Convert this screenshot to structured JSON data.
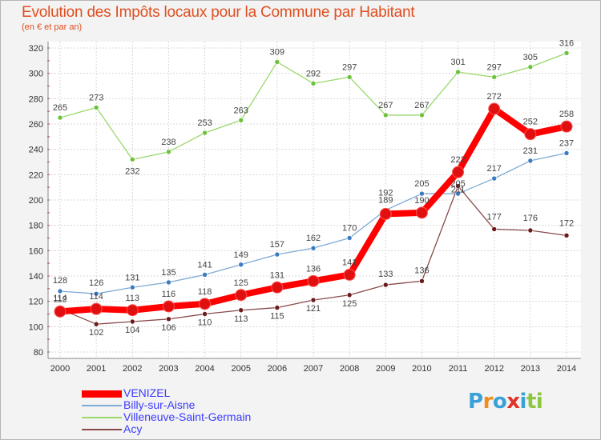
{
  "header": {
    "title": "Evolution des Impôts locaux pour la Commune par Habitant",
    "subtitle": "(en € et par an)"
  },
  "brand": {
    "logo_text": "Proxiti",
    "letter_colors": [
      "#3aa0d8",
      "#f28c1c",
      "#3aa0d8",
      "#e0332a",
      "#3aa0d8",
      "#8dc63f",
      "#8dc63f"
    ]
  },
  "chart_data": {
    "type": "line",
    "x": [
      2000,
      2001,
      2002,
      2003,
      2004,
      2005,
      2006,
      2007,
      2008,
      2009,
      2010,
      2011,
      2012,
      2013,
      2014
    ],
    "ylim": [
      80,
      320
    ],
    "yticks": [
      80,
      100,
      120,
      140,
      160,
      180,
      200,
      220,
      240,
      260,
      280,
      300,
      320
    ],
    "grid": true,
    "legend_position": "bottom-left",
    "series": [
      {
        "name": "VENIZEL",
        "color": "#ff0000",
        "marker": "#e02020",
        "values": [
          112,
          114,
          113,
          116,
          118,
          125,
          131,
          136,
          141,
          189,
          190,
          222,
          272,
          252,
          258
        ]
      },
      {
        "name": "Billy-sur-Aisne",
        "color": "#7eaad6",
        "marker": "#3a7cc0",
        "values": [
          128,
          126,
          131,
          135,
          141,
          149,
          157,
          162,
          170,
          192,
          205,
          205,
          217,
          231,
          237
        ]
      },
      {
        "name": "Villeneuve-Saint-Germain",
        "color": "#9ad86a",
        "marker": "#6cc23c",
        "values": [
          265,
          273,
          232,
          238,
          253,
          263,
          309,
          292,
          297,
          267,
          267,
          301,
          297,
          305,
          316
        ]
      },
      {
        "name": "Acy",
        "color": "#8a4a4a",
        "marker": "#6a1a1a",
        "values": [
          114,
          102,
          104,
          106,
          110,
          113,
          115,
          121,
          125,
          133,
          136,
          211,
          177,
          176,
          172
        ]
      }
    ]
  }
}
